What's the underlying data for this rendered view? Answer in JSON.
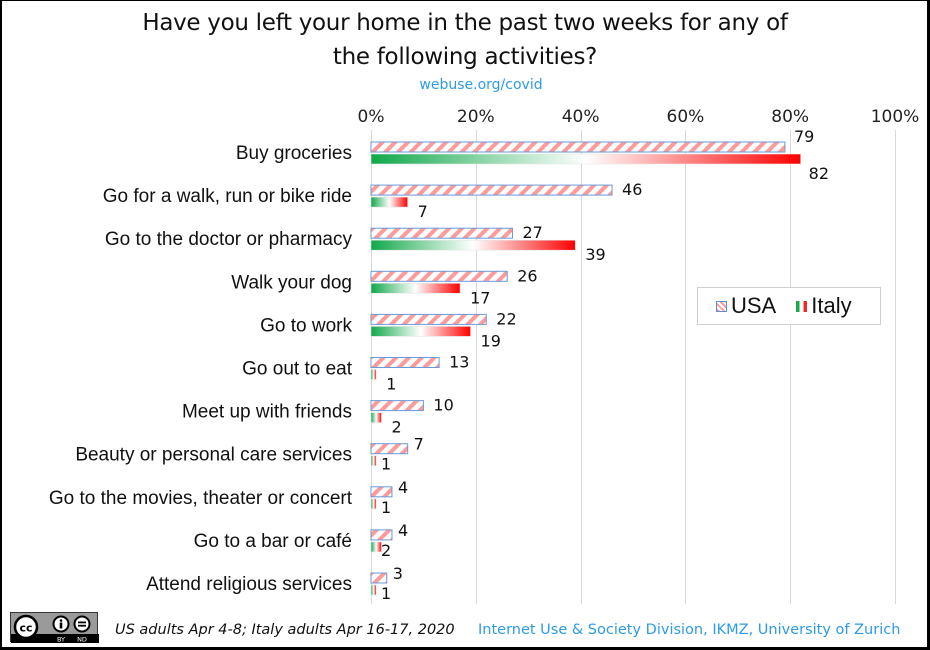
{
  "chart_data": {
    "type": "bar",
    "orientation": "horizontal",
    "title": "Have you left your home in the past two weeks for any of the following activities?",
    "title_lines": [
      "Have you left your home in the past two weeks for any of",
      "the following activities?"
    ],
    "subtitle": "webuse.org/covid",
    "xlabel": "",
    "ylabel": "",
    "xlim": [
      0,
      100
    ],
    "x_ticks": [
      0,
      20,
      40,
      60,
      80,
      100
    ],
    "x_tick_labels": [
      "0%",
      "20%",
      "40%",
      "60%",
      "80%",
      "100%"
    ],
    "grid": true,
    "legend_position": "right",
    "categories": [
      "Buy groceries",
      "Go for a walk, run or bike ride",
      "Go to the doctor or pharmacy",
      "Walk your dog",
      "Go to work",
      "Go out to eat",
      "Meet up with friends",
      "Beauty or personal care services",
      "Go to the movies, theater or concert",
      "Go to a bar or café",
      "Attend religious services"
    ],
    "series": [
      {
        "name": "USA",
        "values": [
          79,
          46,
          27,
          26,
          22,
          13,
          10,
          7,
          4,
          4,
          3
        ],
        "colors": [
          "#ff9a9a",
          "#ffffff",
          "#5b8fd6"
        ]
      },
      {
        "name": "Italy",
        "values": [
          82,
          7,
          39,
          17,
          19,
          1,
          2,
          1,
          1,
          2,
          1
        ],
        "colors": [
          "#10a84a",
          "#ffffff",
          "#ff0000"
        ]
      }
    ]
  },
  "legend": {
    "usa": "USA",
    "italy": "Italy"
  },
  "footer": {
    "note": "US adults Apr 4-8; Italy adults Apr 16-17, 2020",
    "credit": "Internet Use & Society Division, IKMZ, University of Zurich",
    "license": {
      "cc": "cc",
      "by": "BY",
      "nd": "ND"
    }
  }
}
